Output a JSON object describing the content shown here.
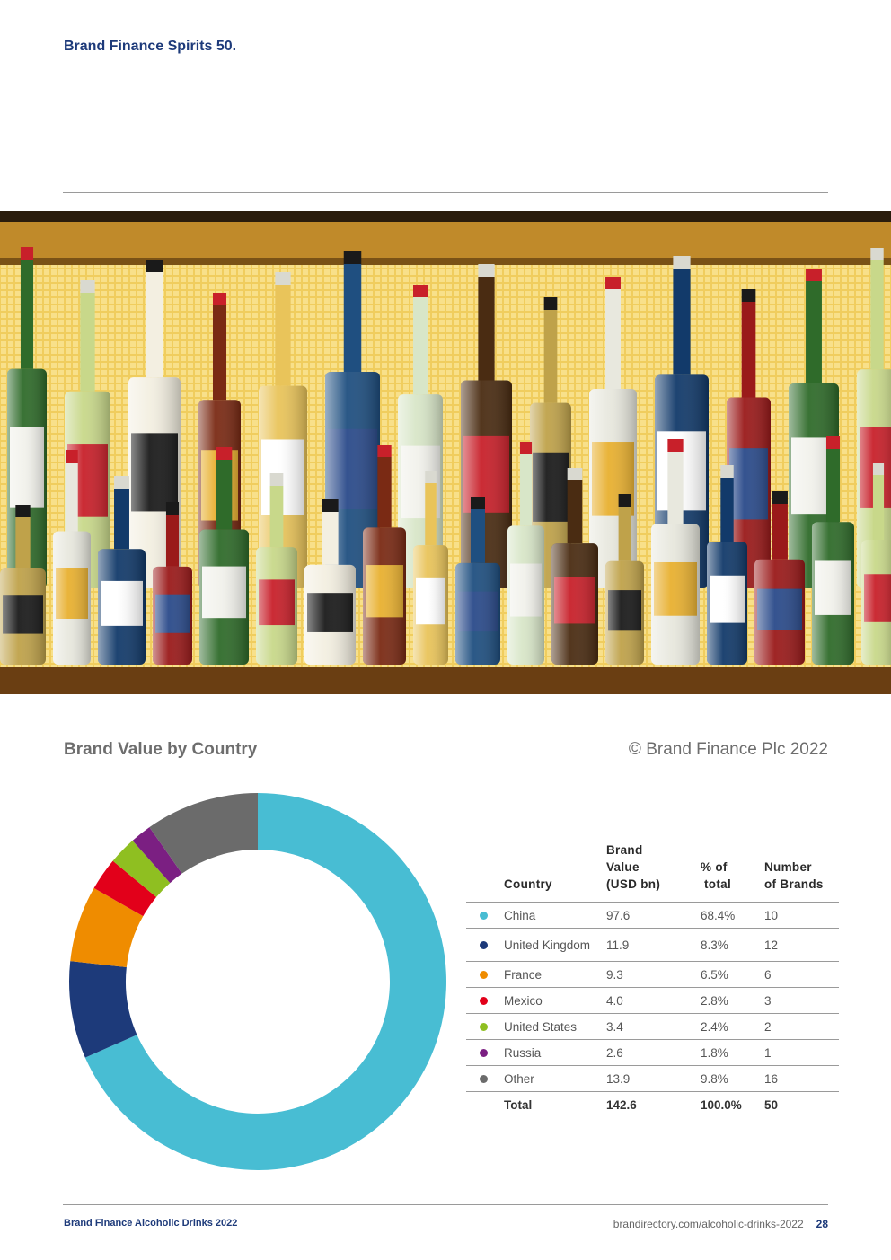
{
  "header": {
    "title": "Brand Finance Spirits 50."
  },
  "section": {
    "title": "Brand Value by Country",
    "copyright": "© Brand Finance Plc 2022"
  },
  "table": {
    "headers": {
      "country": "Country",
      "value": [
        "Brand",
        "Value",
        "(USD bn)"
      ],
      "share": [
        "% of",
        "total"
      ],
      "brands": [
        "Number",
        "of Brands"
      ]
    },
    "rows": [
      {
        "country": "China",
        "value": "97.6",
        "share": "68.4%",
        "brands": "10",
        "color": "#48bdd3"
      },
      {
        "country": "United Kingdom",
        "value": "11.9",
        "share": "8.3%",
        "brands": "12",
        "color": "#1d3a7a"
      },
      {
        "country": "France",
        "value": "9.3",
        "share": "6.5%",
        "brands": "6",
        "color": "#ef8c00"
      },
      {
        "country": "Mexico",
        "value": "4.0",
        "share": "2.8%",
        "brands": "3",
        "color": "#e2001a"
      },
      {
        "country": "United States",
        "value": "3.4",
        "share": "2.4%",
        "brands": "2",
        "color": "#8fbf21"
      },
      {
        "country": "Russia",
        "value": "2.6",
        "share": "1.8%",
        "brands": "1",
        "color": "#7b1f82"
      },
      {
        "country": "Other",
        "value": "13.9",
        "share": "9.8%",
        "brands": "16",
        "color": "#6b6b6b"
      }
    ],
    "total": {
      "label": "Total",
      "value": "142.6",
      "share": "100.0%",
      "brands": "50"
    }
  },
  "chart_data": {
    "type": "pie",
    "categories": [
      "China",
      "United Kingdom",
      "France",
      "Mexico",
      "United States",
      "Russia",
      "Other"
    ],
    "values": [
      97.6,
      11.9,
      9.3,
      4.0,
      3.4,
      2.6,
      13.9
    ],
    "colors": [
      "#48bdd3",
      "#1d3a7a",
      "#ef8c00",
      "#e2001a",
      "#8fbf21",
      "#7b1f82",
      "#6b6b6b"
    ],
    "donut": true
  },
  "footer": {
    "left": "Brand Finance Alcoholic Drinks 2022",
    "url": "brandirectory.com/alcoholic-drinks-2022",
    "page": "28"
  }
}
